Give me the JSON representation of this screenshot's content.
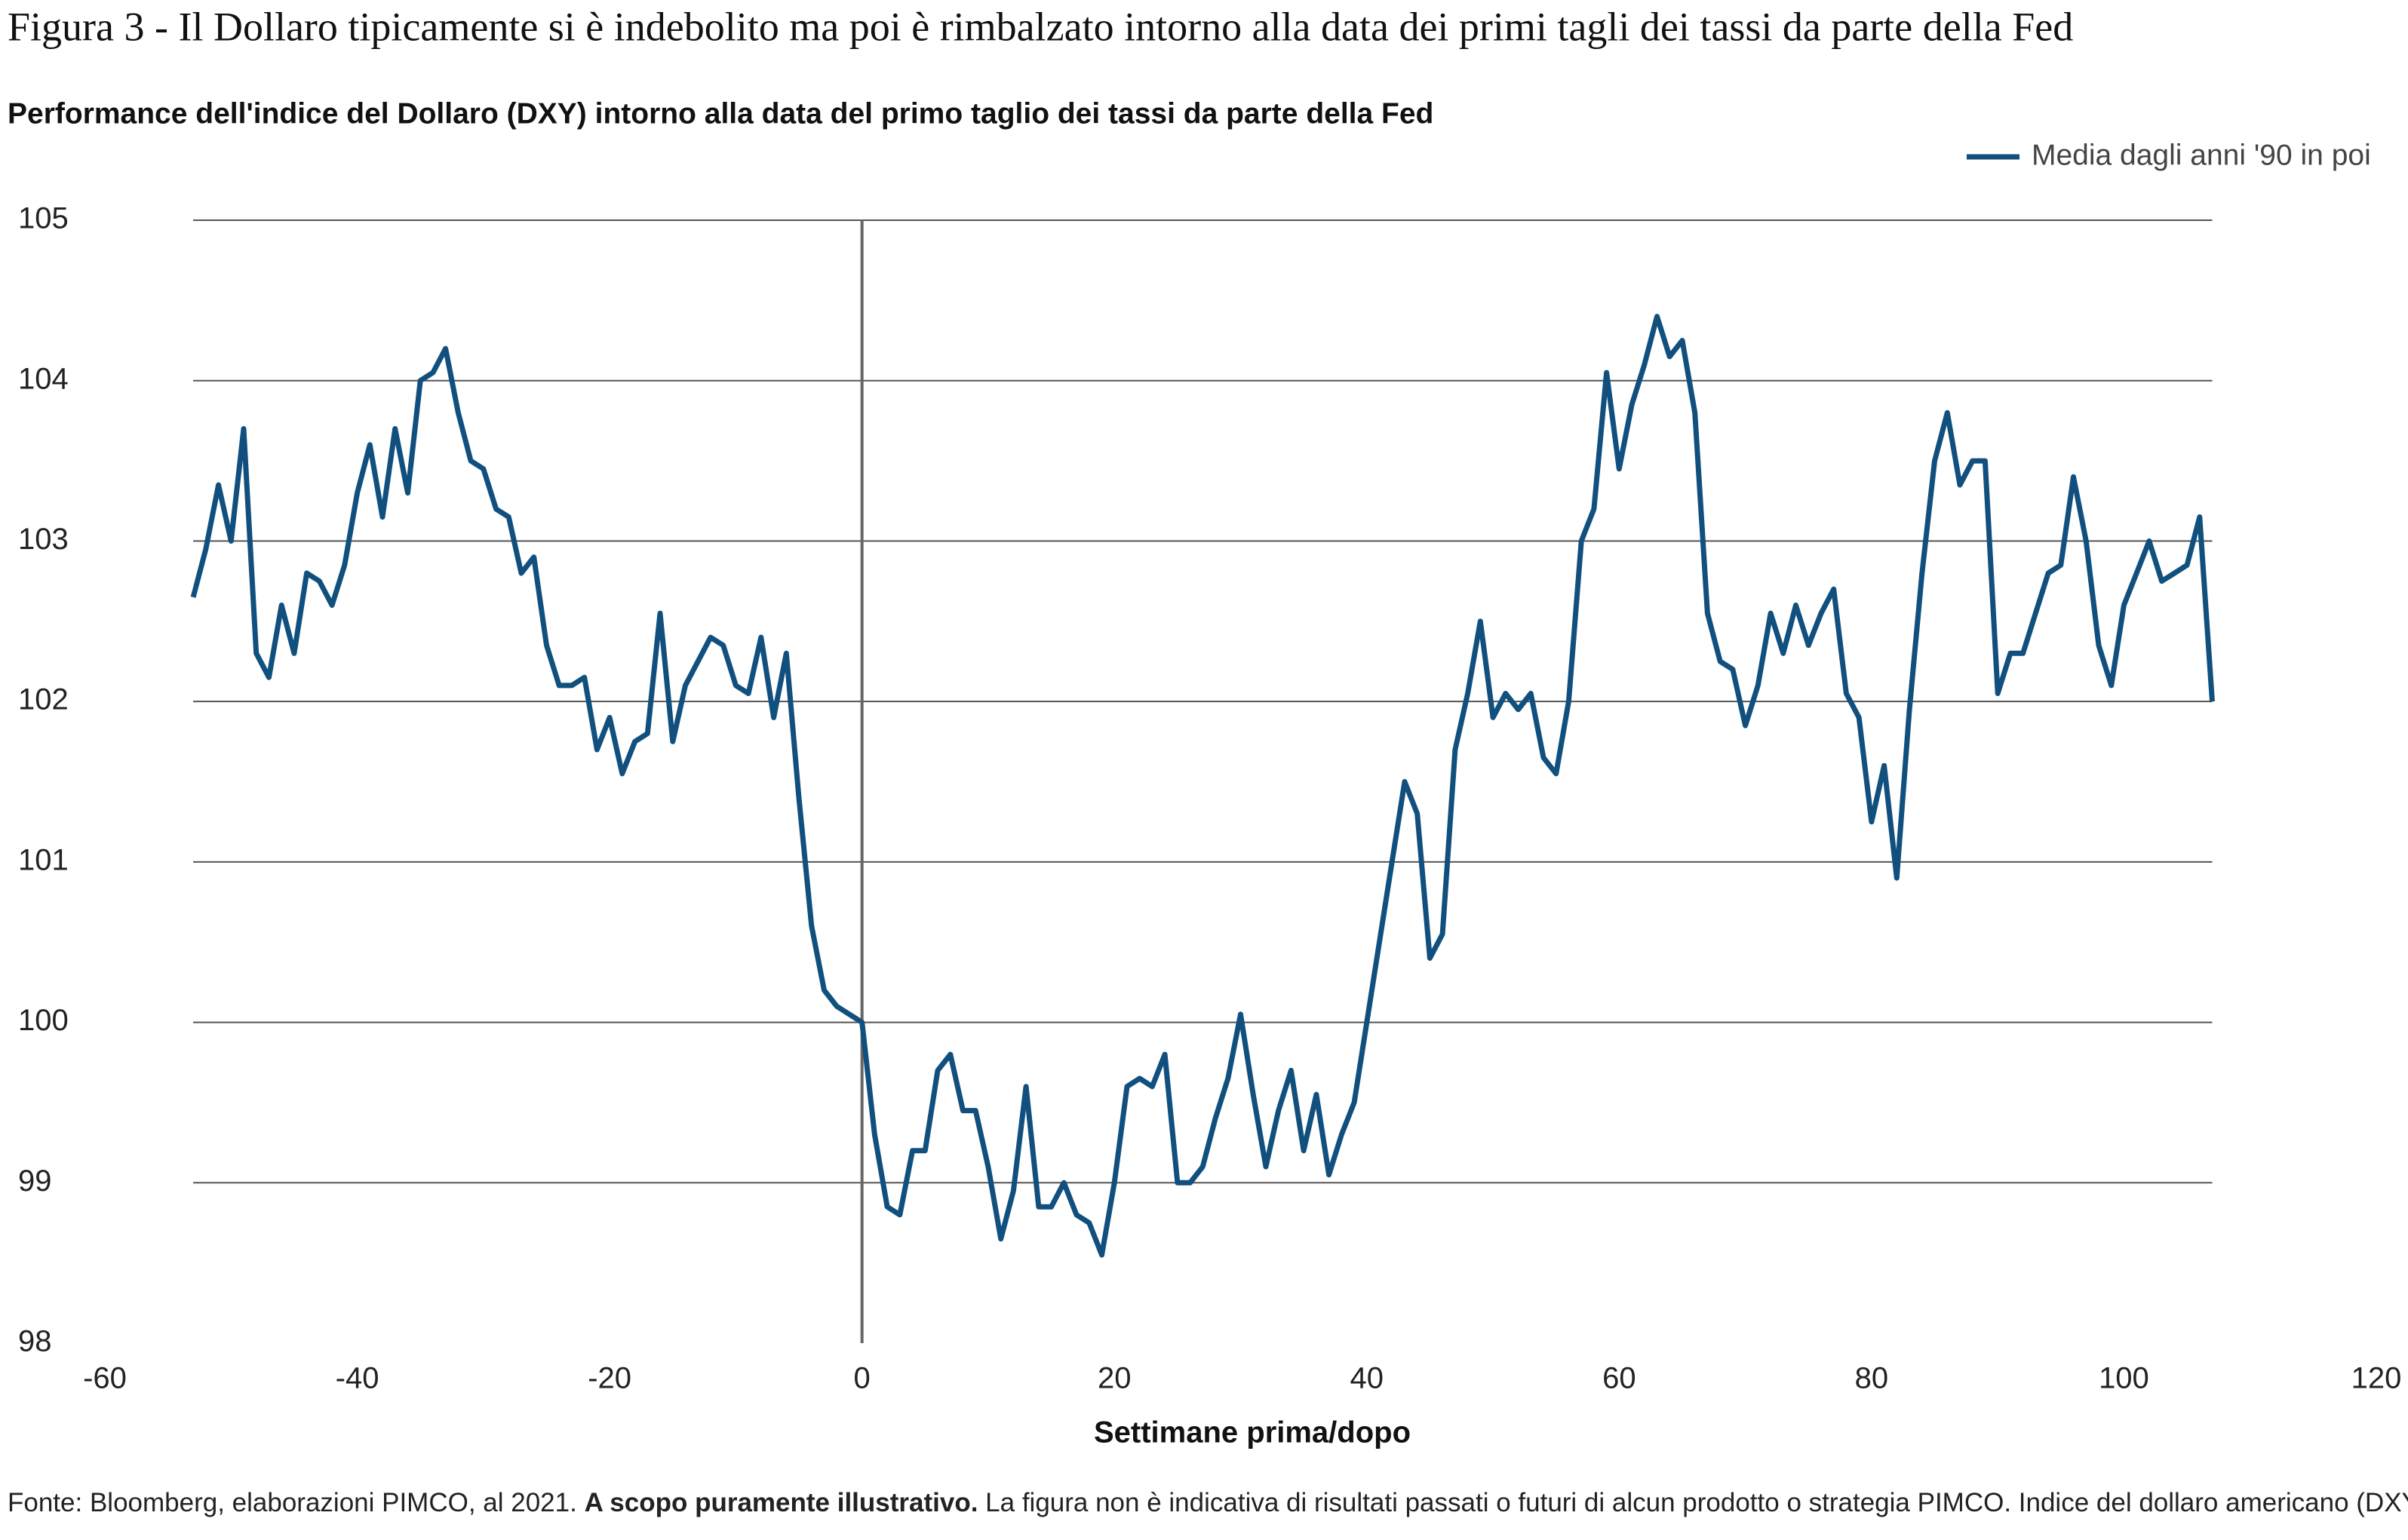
{
  "chart_data": {
    "type": "line",
    "title": "Figura 3 - Il Dollaro tipicamente si è indebolito ma poi è rimbalzato intorno alla data dei primi tagli dei tassi da parte della Fed",
    "subtitle": "Performance dell'indice del Dollaro (DXY) intorno alla data del primo taglio dei tassi da parte della Fed",
    "xlabel": "Settimane prima/dopo",
    "note": [
      "Fonte: Bloomberg, elaborazioni PIMCO, al 2021. ",
      "A scopo puramente illustrativo.",
      " La figura non è indicativa di risultati passati o futuri di alcun prodotto o strategia PIMCO. Indice del dollaro americano (DXY)."
    ],
    "xlim": [
      -60,
      120
    ],
    "xticks": [
      -60,
      -40,
      -20,
      0,
      20,
      40,
      60,
      80,
      100,
      120
    ],
    "ylim": [
      98,
      105
    ],
    "yticks": [
      98,
      99,
      100,
      101,
      102,
      103,
      104,
      105
    ],
    "grid": true,
    "legend": "top-right",
    "x": [
      -53,
      -52,
      -51,
      -50,
      -49,
      -48,
      -47,
      -46,
      -45,
      -44,
      -43,
      -42,
      -41,
      -40,
      -39,
      -38,
      -37,
      -36,
      -35,
      -34,
      -33,
      -32,
      -31,
      -30,
      -29,
      -28,
      -27,
      -26,
      -25,
      -24,
      -23,
      -22,
      -21,
      -20,
      -19,
      -18,
      -17,
      -16,
      -15,
      -14,
      -13,
      -12,
      -11,
      -10,
      -9,
      -8,
      -7,
      -6,
      -5,
      -4,
      -3,
      -2,
      -1,
      0,
      1,
      2,
      3,
      4,
      5,
      6,
      7,
      8,
      9,
      10,
      11,
      12,
      13,
      14,
      15,
      16,
      17,
      18,
      19,
      20,
      21,
      22,
      23,
      24,
      25,
      26,
      27,
      28,
      29,
      30,
      31,
      32,
      33,
      34,
      35,
      36,
      37,
      38,
      39,
      40,
      41,
      42,
      43,
      44,
      45,
      46,
      47,
      48,
      49,
      50,
      51,
      52,
      53,
      54,
      55,
      56,
      57,
      58,
      59,
      60,
      61,
      62,
      63,
      64,
      65,
      66,
      67,
      68,
      69,
      70,
      71,
      72,
      73,
      74,
      75,
      76,
      77,
      78,
      79,
      80,
      81,
      82,
      83,
      84,
      85,
      86,
      87,
      88,
      89,
      90,
      91,
      92,
      93,
      94,
      95,
      96,
      97,
      98,
      99,
      100,
      101,
      102,
      103,
      104,
      105,
      106,
      107
    ],
    "series": [
      {
        "name": "Media dagli anni '90 in poi",
        "color": "#11507e",
        "values": [
          102.65,
          102.95,
          103.35,
          103.0,
          103.7,
          102.3,
          102.15,
          102.6,
          102.3,
          102.8,
          102.75,
          102.6,
          102.85,
          103.3,
          103.6,
          103.15,
          103.7,
          103.3,
          104.0,
          104.05,
          104.2,
          103.8,
          103.5,
          103.45,
          103.2,
          103.15,
          102.8,
          102.9,
          102.35,
          102.1,
          102.1,
          102.15,
          101.7,
          101.9,
          101.55,
          101.75,
          101.8,
          102.55,
          101.75,
          102.1,
          102.25,
          102.4,
          102.35,
          102.1,
          102.05,
          102.4,
          101.9,
          102.3,
          101.4,
          100.6,
          100.2,
          100.1,
          100.05,
          100.0,
          99.3,
          98.85,
          98.8,
          99.2,
          99.2,
          99.7,
          99.8,
          99.45,
          99.45,
          99.1,
          98.65,
          98.95,
          99.6,
          98.85,
          98.85,
          99.0,
          98.8,
          98.75,
          98.55,
          99.0,
          99.6,
          99.65,
          99.6,
          99.8,
          99.0,
          99.0,
          99.1,
          99.4,
          99.65,
          100.05,
          99.55,
          99.1,
          99.45,
          99.7,
          99.2,
          99.55,
          99.05,
          99.3,
          99.5,
          100.0,
          100.5,
          101.0,
          101.5,
          101.3,
          100.4,
          100.55,
          101.7,
          102.05,
          102.5,
          101.9,
          102.05,
          101.95,
          102.05,
          101.65,
          101.55,
          102.0,
          103.0,
          103.2,
          104.05,
          103.45,
          103.85,
          104.1,
          104.4,
          104.15,
          104.25,
          103.8,
          102.55,
          102.25,
          102.2,
          101.85,
          102.1,
          102.55,
          102.3,
          102.6,
          102.35,
          102.55,
          102.7,
          102.05,
          101.9,
          101.25,
          101.6,
          100.9,
          101.95,
          102.8,
          103.5,
          103.8,
          103.35,
          103.5,
          103.5,
          102.05,
          102.3,
          102.3,
          102.55,
          102.8,
          102.85,
          103.4,
          103.0,
          102.35,
          102.1,
          102.6,
          102.8,
          103.0,
          102.75,
          102.8,
          102.85,
          103.15,
          102.0
        ]
      }
    ]
  }
}
